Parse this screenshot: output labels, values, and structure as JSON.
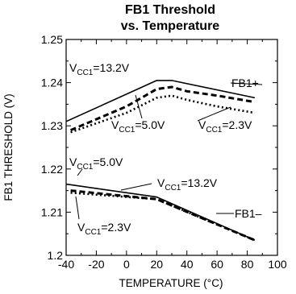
{
  "chart_data": {
    "type": "line",
    "title": [
      "FB1 Threshold",
      "vs. Temperature"
    ],
    "xlabel": "TEMPERATURE (°C)",
    "ylabel": "FB1 THRESHOLD (V)",
    "xlim": [
      -40,
      100
    ],
    "ylim": [
      1.2,
      1.25
    ],
    "x_ticks": [
      "-40",
      "-20",
      "0",
      "20",
      "40",
      "60",
      "80",
      "100"
    ],
    "y_ticks": [
      "1.2",
      "1.21",
      "1.22",
      "1.23",
      "1.24",
      "1.25"
    ],
    "grid": false,
    "series": [
      {
        "name": "FB1+ VCC1=13.2V",
        "style": "solid",
        "x": [
          -40,
          20,
          30,
          85
        ],
        "y": [
          1.231,
          1.2405,
          1.2405,
          1.2365
        ]
      },
      {
        "name": "FB1+ VCC1=5.0V",
        "style": "dashed",
        "x": [
          -37,
          0,
          20,
          30,
          40,
          60,
          85
        ],
        "y": [
          1.229,
          1.2345,
          1.2385,
          1.239,
          1.238,
          1.237,
          1.2355
        ]
      },
      {
        "name": "FB1+ VCC1=2.3V",
        "style": "dotted",
        "x": [
          -37,
          0,
          20,
          30,
          40,
          60,
          85
        ],
        "y": [
          1.2285,
          1.233,
          1.2365,
          1.237,
          1.236,
          1.2345,
          1.233
        ]
      },
      {
        "name": "FB1- VCC1=13.2V",
        "style": "solid",
        "x": [
          -40,
          20,
          85
        ],
        "y": [
          1.2165,
          1.2135,
          1.2035
        ]
      },
      {
        "name": "FB1- VCC1=5.0V",
        "style": "dashed",
        "x": [
          -37,
          20,
          85
        ],
        "y": [
          1.215,
          1.213,
          1.2035
        ]
      },
      {
        "name": "FB1- VCC1=2.3V",
        "style": "dotted",
        "x": [
          -37,
          20,
          85
        ],
        "y": [
          1.2145,
          1.213,
          1.2035
        ]
      }
    ],
    "annotations": [
      {
        "id": "top-13v",
        "main": "V",
        "sub": "CC1",
        "rest": "=13.2V"
      },
      {
        "id": "top-5v",
        "main": "V",
        "sub": "CC1",
        "rest": "=5.0V"
      },
      {
        "id": "top-2v",
        "main": "V",
        "sub": "CC1",
        "rest": "=2.3V"
      },
      {
        "id": "fb1plus",
        "main": "FB1+",
        "sub": "",
        "rest": ""
      },
      {
        "id": "bot-5v",
        "main": "V",
        "sub": "CC1",
        "rest": "=5.0V"
      },
      {
        "id": "bot-13v",
        "main": "V",
        "sub": "CC1",
        "rest": "=13.2V"
      },
      {
        "id": "fb1minus",
        "main": "FB1–",
        "sub": "",
        "rest": ""
      },
      {
        "id": "bot-2v",
        "main": "V",
        "sub": "CC1",
        "rest": "=2.3V"
      }
    ]
  }
}
